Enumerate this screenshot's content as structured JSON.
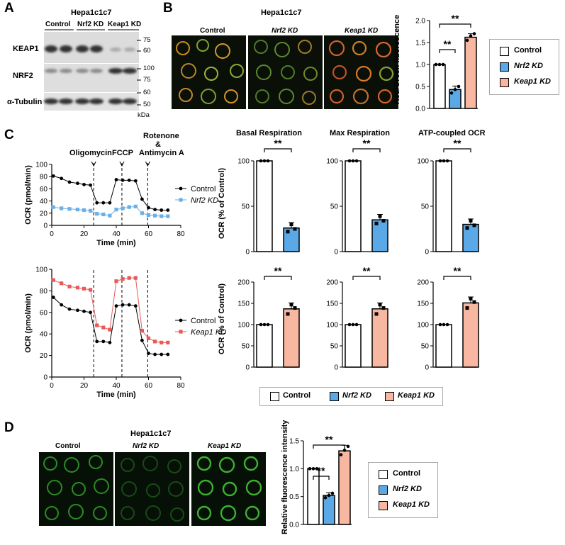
{
  "panels": {
    "A": "A",
    "B": "B",
    "C": "C",
    "D": "D"
  },
  "colors": {
    "control": "#ffffff",
    "nrf2": "#5aa9e6",
    "keap1": "#f7b7a0",
    "nrf2_line": "#6ab0e8",
    "keap1_line": "#e85a5a"
  },
  "A": {
    "title": "Hepa1c1c7",
    "groups": [
      "Control",
      "Nrf2 KD",
      "Keap1 KD"
    ],
    "rows": [
      "KEAP1",
      "NRF2",
      "α-Tubulin"
    ],
    "markers": [
      "75",
      "60",
      "100",
      "75",
      "60",
      "50"
    ],
    "kda": "kDa"
  },
  "B": {
    "title": "Hepa1c1c7",
    "images": [
      "Control",
      "Nrf2 KD",
      "Keap1 KD"
    ],
    "ylabel": "Red/Green fluorescence",
    "sig": [
      "**",
      "**"
    ],
    "legend": [
      "Control",
      "Nrf2 KD",
      "Keap1 KD"
    ],
    "chart_data": {
      "type": "bar",
      "categories": [
        "Control",
        "Nrf2 KD",
        "Keap1 KD"
      ],
      "values": [
        1.0,
        0.43,
        1.62
      ],
      "points": [
        [
          1,
          1,
          1
        ],
        [
          0.35,
          0.43,
          0.5
        ],
        [
          1.55,
          1.65,
          1.7
        ]
      ],
      "ylim": [
        0,
        2.0
      ],
      "yticks": [
        "0.0",
        "0.5",
        "1.0",
        "1.5",
        "2.0"
      ],
      "ylabel": "Red/Green fluorescence"
    }
  },
  "C": {
    "annotations": [
      "Oligomycin",
      "FCCP",
      "Rotenone",
      "&",
      "Antimycin A"
    ],
    "line1": {
      "ylabel": "OCR (pmol/min)",
      "xlabel": "Time (min)",
      "legend": [
        "Control",
        "Nrf2 KD"
      ],
      "yticks": [
        "0",
        "20",
        "40",
        "60",
        "80",
        "100"
      ],
      "xticks": [
        "0",
        "20",
        "40",
        "60",
        "80"
      ]
    },
    "line2": {
      "ylabel": "OCR (pmol/min)",
      "xlabel": "Time (min)",
      "legend": [
        "Control",
        "Keap1 KD"
      ],
      "yticks": [
        "0",
        "20",
        "40",
        "60",
        "80",
        "100"
      ],
      "xticks": [
        "0",
        "20",
        "40",
        "60",
        "80"
      ]
    },
    "bar_titles": [
      "Basal Respiration",
      "Max Respiration",
      "ATP-coupled OCR"
    ],
    "bar_ylabel": "OCR (% of Control)",
    "sig": "**",
    "top_yticks": [
      "0",
      "50",
      "100"
    ],
    "bot_yticks": [
      "0",
      "50",
      "100",
      "150",
      "200"
    ],
    "legend": [
      "Control",
      "Nrf2 KD",
      "Keap1 KD"
    ],
    "chart_data": [
      {
        "type": "line",
        "title": "",
        "xlabel": "Time (min)",
        "ylabel": "OCR (pmol/min)",
        "xlim": [
          0,
          80
        ],
        "ylim": [
          0,
          100
        ],
        "series": [
          {
            "name": "Control",
            "x": [
              1,
              6,
              11,
              16,
              20,
              24,
              28,
              32,
              36,
              40,
              44,
              48,
              52,
              56,
              60,
              64,
              68,
              72
            ],
            "y": [
              81,
              77,
              71,
              69,
              67,
              66,
              37,
              37,
              37,
              75,
              74,
              74,
              73,
              43,
              29,
              26,
              25,
              25
            ]
          },
          {
            "name": "Nrf2 KD",
            "x": [
              1,
              6,
              11,
              16,
              20,
              24,
              28,
              32,
              36,
              40,
              44,
              48,
              52,
              56,
              60,
              64,
              68,
              72
            ],
            "y": [
              30,
              28,
              27,
              26,
              25,
              24,
              19,
              18,
              16,
              26,
              28,
              30,
              31,
              20,
              17,
              16,
              15,
              15
            ]
          }
        ]
      },
      {
        "type": "line",
        "title": "",
        "xlabel": "Time (min)",
        "ylabel": "OCR (pmol/min)",
        "xlim": [
          0,
          80
        ],
        "ylim": [
          0,
          100
        ],
        "series": [
          {
            "name": "Control",
            "x": [
              1,
              6,
              11,
              16,
              20,
              24,
              28,
              32,
              36,
              40,
              44,
              48,
              52,
              56,
              60,
              64,
              68,
              72
            ],
            "y": [
              74,
              67,
              63,
              62,
              61,
              60,
              33,
              33,
              32,
              66,
              67,
              67,
              66,
              34,
              22,
              21,
              21,
              21
            ],
            "marker": "circle"
          },
          {
            "name": "Keap1 KD",
            "x": [
              1,
              6,
              11,
              16,
              20,
              24,
              28,
              32,
              36,
              40,
              44,
              48,
              52,
              56,
              60,
              64,
              68,
              72
            ],
            "y": [
              90,
              87,
              84,
              83,
              82,
              81,
              48,
              46,
              44,
              89,
              91,
              92,
              92,
              43,
              36,
              33,
              32,
              32
            ]
          }
        ]
      },
      {
        "type": "bar",
        "title": "Basal Respiration",
        "categories": [
          "Control",
          "Nrf2 KD"
        ],
        "values": [
          100,
          26
        ],
        "ylim": [
          0,
          100
        ]
      },
      {
        "type": "bar",
        "title": "Max Respiration",
        "categories": [
          "Control",
          "Nrf2 KD"
        ],
        "values": [
          100,
          35
        ],
        "ylim": [
          0,
          100
        ]
      },
      {
        "type": "bar",
        "title": "ATP-coupled OCR",
        "categories": [
          "Control",
          "Nrf2 KD"
        ],
        "values": [
          100,
          30
        ],
        "ylim": [
          0,
          100
        ]
      },
      {
        "type": "bar",
        "title": "",
        "categories": [
          "Control",
          "Keap1 KD"
        ],
        "values": [
          100,
          137
        ],
        "ylim": [
          0,
          200
        ]
      },
      {
        "type": "bar",
        "title": "",
        "categories": [
          "Control",
          "Keap1 KD"
        ],
        "values": [
          100,
          137
        ],
        "ylim": [
          0,
          200
        ]
      },
      {
        "type": "bar",
        "title": "",
        "categories": [
          "Control",
          "Keap1 KD"
        ],
        "values": [
          100,
          151
        ],
        "ylim": [
          0,
          200
        ]
      }
    ]
  },
  "D": {
    "title": "Hepa1c1c7",
    "images": [
      "Control",
      "Nrf2 KD",
      "Keap1 KD"
    ],
    "ylabel": "Relative fluorescence intensity",
    "sig": [
      "**",
      "**"
    ],
    "legend": [
      "Control",
      "Nrf2 KD",
      "Keap1 KD"
    ],
    "chart_data": {
      "type": "bar",
      "categories": [
        "Control",
        "Nrf2 KD",
        "Keap1 KD"
      ],
      "values": [
        1.0,
        0.52,
        1.32
      ],
      "ylim": [
        0,
        1.5
      ],
      "yticks": [
        "0.0",
        "0.5",
        "1.0",
        "1.5"
      ],
      "ylabel": "Relative fluorescence intensity"
    }
  }
}
